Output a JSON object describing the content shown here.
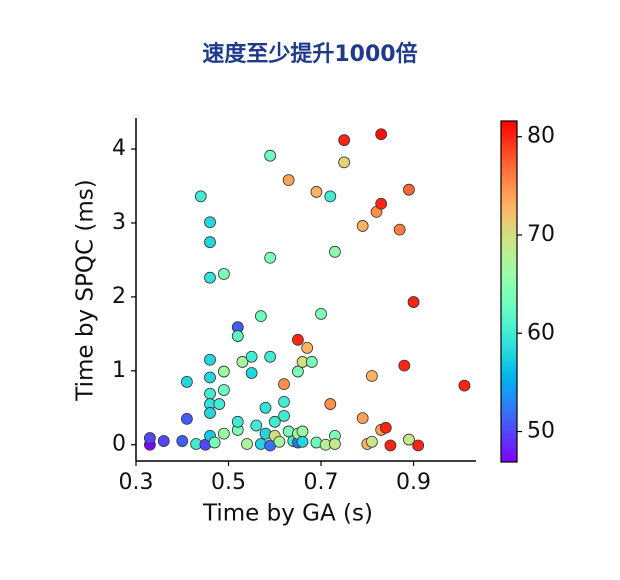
{
  "chart_data": {
    "type": "scatter",
    "title": "速度至少提升1000倍",
    "x_label": "Time by GA (s)",
    "y_label": "Time by SPQC (ms)",
    "xlim": [
      0.3,
      1.035
    ],
    "ylim": [
      -0.22,
      4.42
    ],
    "xticks": [
      0.3,
      0.5,
      0.7,
      0.9
    ],
    "yticks": [
      0,
      1,
      2,
      3,
      4
    ],
    "colormap": "rainbow",
    "clim": [
      46.9,
      81.6
    ],
    "cticks": [
      50,
      60,
      70,
      80
    ],
    "x": [
      0.33,
      0.33,
      0.36,
      0.4,
      0.41,
      0.41,
      0.44,
      0.43,
      0.45,
      0.46,
      0.46,
      0.46,
      0.46,
      0.49,
      0.52,
      0.52,
      0.46,
      0.46,
      0.46,
      0.46,
      0.48,
      0.46,
      0.47,
      0.49,
      0.49,
      0.49,
      0.52,
      0.52,
      0.53,
      0.55,
      0.55,
      0.54,
      0.56,
      0.57,
      0.57,
      0.58,
      0.58,
      0.59,
      0.59,
      0.59,
      0.59,
      0.6,
      0.6,
      0.61,
      0.62,
      0.62,
      0.62,
      0.63,
      0.63,
      0.64,
      0.65,
      0.65,
      0.66,
      0.65,
      0.66,
      0.67,
      0.65,
      0.66,
      0.68,
      0.69,
      0.7,
      0.69,
      0.72,
      0.72,
      0.71,
      0.73,
      0.73,
      0.73,
      0.75,
      0.75,
      0.79,
      0.79,
      0.8,
      0.81,
      0.81,
      0.82,
      0.83,
      0.83,
      0.83,
      0.84,
      0.85,
      0.87,
      0.88,
      0.89,
      0.89,
      0.9,
      0.91,
      1.01
    ],
    "values": [
      0,
      0.09,
      0.05,
      0.05,
      0.35,
      0.85,
      3.36,
      0.01,
      0,
      0.12,
      3.01,
      2.74,
      2.26,
      2.31,
      1.59,
      1.47,
      1.15,
      0.91,
      0.69,
      0.55,
      0.55,
      0.43,
      0.03,
      0.99,
      0.74,
      0.15,
      0.2,
      0.31,
      1.12,
      1.19,
      0.97,
      0.01,
      0.26,
      0.01,
      1.74,
      0.5,
      0.15,
      -0.01,
      1.19,
      3.91,
      2.53,
      0.31,
      0.12,
      0.04,
      0.39,
      0.58,
      0.82,
      0.18,
      3.58,
      0.05,
      0.03,
      0.15,
      0.18,
      0.99,
      1.12,
      1.31,
      1.42,
      0.04,
      1.12,
      0.03,
      1.77,
      3.42,
      0.55,
      3.36,
      0,
      0.12,
      0.01,
      2.61,
      4.12,
      3.82,
      0.36,
      2.96,
      0.01,
      0.93,
      0.04,
      3.15,
      3.26,
      0.2,
      4.2,
      0.23,
      -0.01,
      2.91,
      1.07,
      3.45,
      0.07,
      1.93,
      -0.01,
      0.8
    ],
    "color_values": [
      47,
      50,
      50,
      51,
      51,
      58,
      60,
      60,
      50,
      57,
      58,
      58,
      59,
      64,
      51,
      62,
      58,
      58,
      60,
      59,
      60,
      58,
      64,
      66,
      63,
      66,
      64,
      60,
      67,
      60,
      58,
      67,
      60,
      58,
      63,
      59,
      58,
      52,
      60,
      63,
      64,
      60,
      70,
      67,
      60,
      60,
      75,
      64,
      74,
      60,
      52,
      67,
      66,
      64,
      70,
      73,
      80,
      58,
      64,
      63,
      64,
      73,
      75,
      60,
      68,
      64,
      69,
      65,
      80,
      71,
      74,
      73,
      73,
      73,
      69,
      75,
      80,
      74,
      81,
      80,
      80,
      76,
      80,
      77,
      69,
      80,
      80,
      80
    ]
  }
}
